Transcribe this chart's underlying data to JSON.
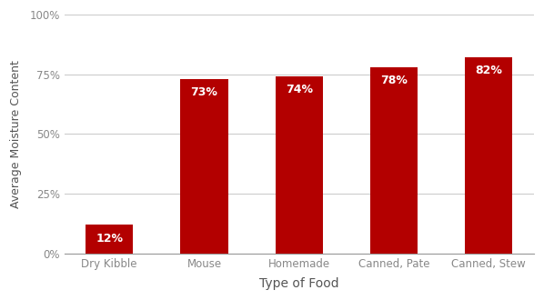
{
  "categories": [
    "Dry Kibble",
    "Mouse",
    "Homemade",
    "Canned, Pate",
    "Canned, Stew"
  ],
  "values": [
    12,
    73,
    74,
    78,
    82
  ],
  "bar_color": "#B30000",
  "label_color": "#FFFFFF",
  "label_fontsize": 9,
  "xlabel": "Type of Food",
  "ylabel": "Average Moisture Content",
  "xlabel_fontsize": 10,
  "ylabel_fontsize": 9,
  "tick_fontsize": 8.5,
  "ylim": [
    0,
    100
  ],
  "yticks": [
    0,
    25,
    50,
    75,
    100
  ],
  "ytick_labels": [
    "0%",
    "25%",
    "50%",
    "75%",
    "100%"
  ],
  "background_color": "#FFFFFF",
  "grid_color": "#CCCCCC",
  "bar_width": 0.5
}
